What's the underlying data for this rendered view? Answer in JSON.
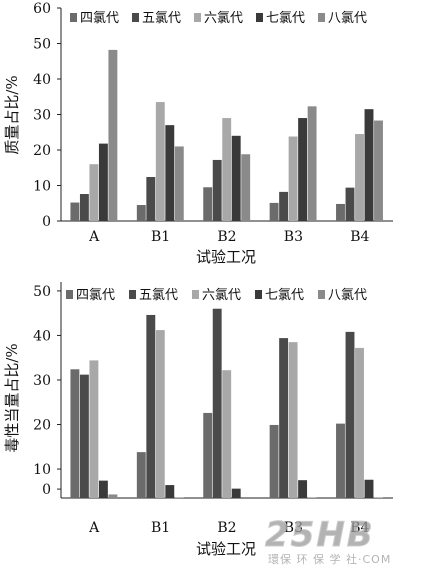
{
  "colors": [
    "#6b6b6b",
    "#4a4a4a",
    "#a8a8a8",
    "#3a3a3a",
    "#8a8a8a"
  ],
  "chart_data": [
    {
      "type": "bar",
      "categories": [
        "A",
        "B1",
        "B2",
        "B3",
        "B4"
      ],
      "series": [
        {
          "name": "四氯代",
          "values": [
            5.2,
            4.5,
            9.5,
            5.1,
            4.8
          ]
        },
        {
          "name": "五氯代",
          "values": [
            7.6,
            12.4,
            17.2,
            8.2,
            9.4
          ]
        },
        {
          "name": "六氯代",
          "values": [
            16.0,
            33.5,
            29.0,
            23.8,
            24.5
          ]
        },
        {
          "name": "七氯代",
          "values": [
            21.8,
            27.0,
            24.0,
            29.0,
            31.5
          ]
        },
        {
          "name": "八氯代",
          "values": [
            48.2,
            21.0,
            18.8,
            32.3,
            28.3
          ]
        }
      ],
      "xlabel": "试验工况",
      "ylabel": "质量占比/%",
      "ylim": [
        0,
        60
      ],
      "yticks": [
        "0",
        "10",
        "20",
        "30",
        "40",
        "50",
        "60"
      ],
      "legend_position": "top"
    },
    {
      "type": "bar",
      "categories": [
        "A",
        "B1",
        "B2",
        "B3",
        "B4"
      ],
      "series": [
        {
          "name": "四氯代",
          "values": [
            32.4,
            13.8,
            22.6,
            19.9,
            20.2
          ]
        },
        {
          "name": "五氯代",
          "values": [
            31.2,
            44.6,
            46.0,
            39.4,
            40.8
          ]
        },
        {
          "name": "六氯代",
          "values": [
            34.4,
            41.2,
            32.2,
            38.5,
            37.2
          ]
        },
        {
          "name": "七氯代",
          "values": [
            7.4,
            6.4,
            5.6,
            7.5,
            7.6
          ]
        },
        {
          "name": "八氯代",
          "values": [
            4.3,
            3.6,
            3.4,
            3.6,
            3.6
          ]
        }
      ],
      "xlabel": "试验工况",
      "ylabel": "毒性当量占比/%",
      "ylim": [
        3.5,
        52
      ],
      "yticks": [
        "50",
        "40",
        "30",
        "20",
        "10",
        "0"
      ],
      "legend_position": "top"
    }
  ],
  "watermark": {
    "logo": "25HB",
    "text": "環保 环 保 学 社·COM"
  }
}
